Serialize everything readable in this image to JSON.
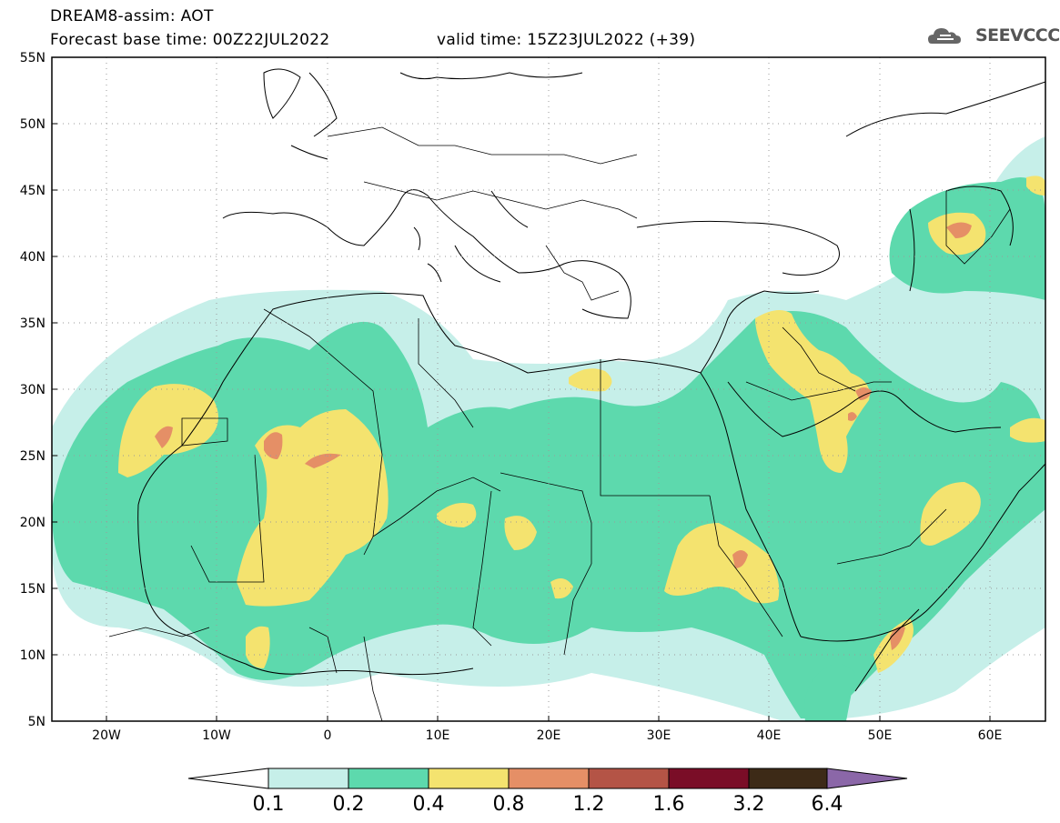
{
  "header": {
    "line1": "DREAM8-assim: AOT",
    "line2": "Forecast base time: 00Z22JUL2022",
    "valid": "valid time: 15Z23JUL2022 (+39)"
  },
  "logo": {
    "text": "SEEVCCC"
  },
  "map": {
    "lon_range": [
      -25,
      65
    ],
    "lat_range": [
      5,
      55
    ],
    "lat_labels": [
      "55N",
      "50N",
      "45N",
      "40N",
      "35N",
      "30N",
      "25N",
      "20N",
      "15N",
      "10N",
      "5N"
    ],
    "lon_labels": [
      "20W",
      "10W",
      "0",
      "10E",
      "20E",
      "30E",
      "40E",
      "50E",
      "60E"
    ]
  },
  "colorbar": {
    "levels": [
      "0.1",
      "0.2",
      "0.4",
      "0.8",
      "1.2",
      "1.6",
      "3.2",
      "6.4"
    ],
    "colors": [
      "#ffffff",
      "#c6efe9",
      "#5dd9ad",
      "#f4e36f",
      "#e58f66",
      "#b45446",
      "#7a0d27",
      "#3d2a17",
      "#8b67a8"
    ]
  }
}
